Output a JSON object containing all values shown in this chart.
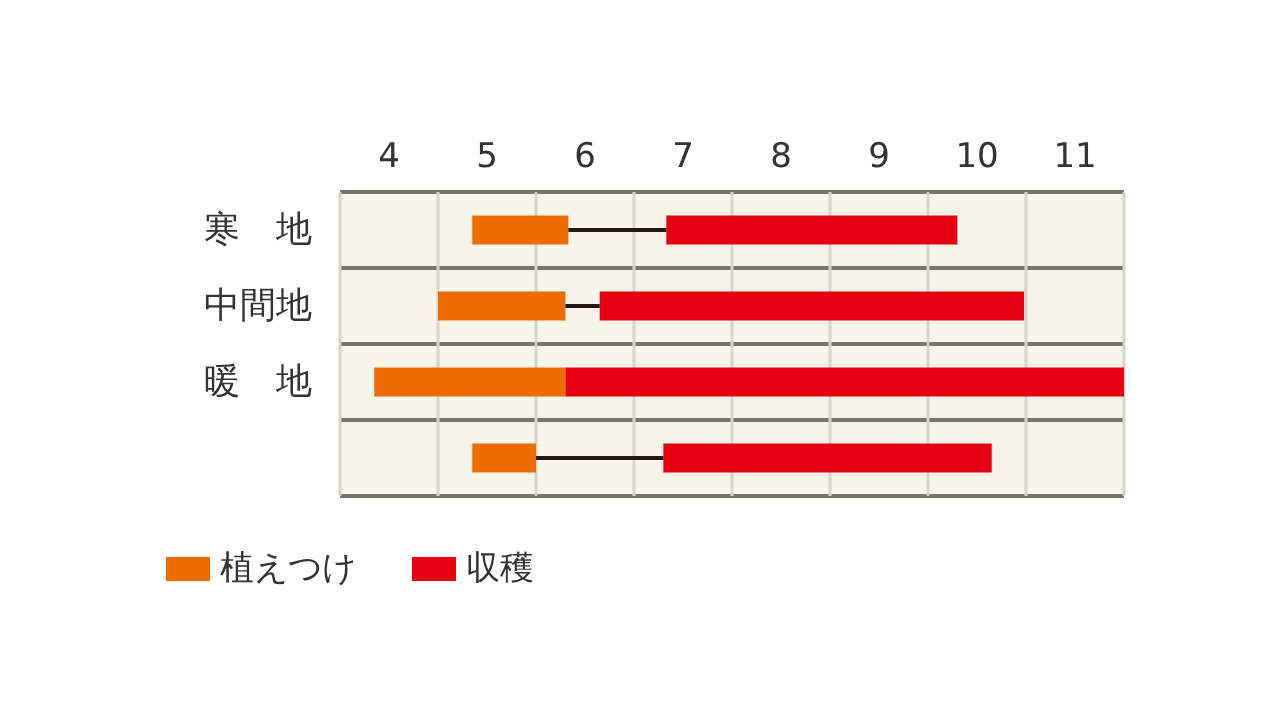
{
  "chart_data": {
    "type": "bar",
    "orientation": "horizontal",
    "categories": [
      "寒　地",
      "中間地",
      "暖　地",
      null
    ],
    "series": [
      {
        "name": "植えつけ",
        "color": "#ec6c00",
        "base": [
          5.35,
          5.0,
          4.35,
          5.35
        ],
        "values": [
          0.98,
          1.3,
          1.95,
          0.65
        ]
      },
      {
        "name": "収穫",
        "color": "#e60012",
        "base": [
          7.33,
          6.65,
          6.3,
          7.3
        ],
        "values": [
          2.97,
          4.33,
          5.7,
          3.35
        ]
      }
    ],
    "xlim": [
      4,
      12
    ],
    "xticks": [
      {
        "value": 4.5,
        "label": "4"
      },
      {
        "value": 5.5,
        "label": "5"
      },
      {
        "value": 6.5,
        "label": "6"
      },
      {
        "value": 7.5,
        "label": "7"
      },
      {
        "value": 8.5,
        "label": "8"
      },
      {
        "value": 9.5,
        "label": "9"
      },
      {
        "value": 10.5,
        "label": "10"
      },
      {
        "value": 11.5,
        "label": "11"
      }
    ],
    "grid": true,
    "legend": "bottom left"
  }
}
